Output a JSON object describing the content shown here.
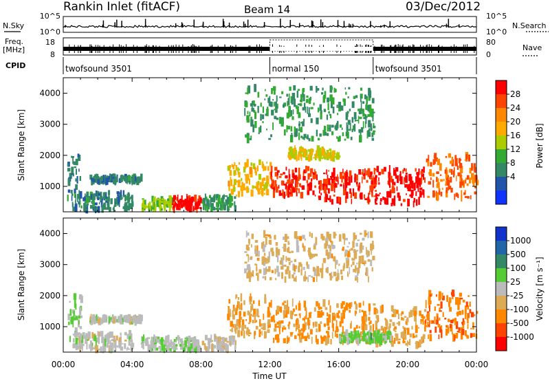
{
  "header": {
    "title": "Rankin Inlet (fitACF)",
    "beam": "Beam 14",
    "date": "03/Dec/2012"
  },
  "strips": {
    "nsky_label": "N.Sky",
    "nsearch_label": "N.Search",
    "noise_ticks": [
      "10^5",
      "10^0"
    ],
    "freq_label": "Freq.",
    "freq_unit": "[MHz]",
    "freq_ticks": [
      "18",
      "8"
    ],
    "nave_label": "Nave",
    "nave_ticks": [
      "80",
      "0"
    ],
    "cpid_label": "CPID",
    "cpid_segments": [
      {
        "name": "twofsound 3501",
        "start_h": 0,
        "end_h": 12
      },
      {
        "name": "normal 150",
        "start_h": 12,
        "end_h": 18
      },
      {
        "name": "twofsound 3501",
        "start_h": 18,
        "end_h": 24
      }
    ]
  },
  "axes": {
    "xlabel": "Time UT",
    "xticks": [
      "00:00",
      "04:00",
      "08:00",
      "12:00",
      "16:00",
      "20:00",
      "00:00"
    ],
    "xrange_h": [
      0,
      24
    ],
    "ylabel": "Slant Range [km]",
    "yticks": [
      1000,
      2000,
      3000,
      4000
    ],
    "yrange_km": [
      180,
      4500
    ]
  },
  "power_colorbar": {
    "label": "Power [dB]",
    "ticks": [
      "28",
      "24",
      "20",
      "16",
      "12",
      "8",
      "4"
    ],
    "colors": [
      "#ff0000",
      "#ff4400",
      "#ff8800",
      "#ffaa00",
      "#aacc00",
      "#33aa33",
      "#338866",
      "#2255aa",
      "#1133ff"
    ]
  },
  "velocity_colorbar": {
    "label": "Velocity [m s⁻¹]",
    "ticks": [
      "1000",
      "500",
      "100",
      "25",
      "-25",
      "-100",
      "-500",
      "-1000"
    ],
    "colors": [
      "#1133cc",
      "#2266aa",
      "#338866",
      "#55cc33",
      "#bbbbbb",
      "#ddaa55",
      "#ff8800",
      "#ff4400",
      "#ff0000"
    ]
  },
  "chart_data": [
    {
      "type": "heatmap",
      "panel": "power",
      "x_unit": "hours UT",
      "y_unit": "km",
      "value_unit": "dB",
      "xlim": [
        0,
        24
      ],
      "ylim": [
        180,
        4500
      ],
      "value_range": [
        0,
        30
      ],
      "regions": [
        {
          "t": [
            0.2,
            1.0
          ],
          "r": [
            600,
            2000
          ],
          "v": 8
        },
        {
          "t": [
            0.5,
            4.0
          ],
          "r": [
            250,
            800
          ],
          "v": 8
        },
        {
          "t": [
            1.5,
            4.5
          ],
          "r": [
            1150,
            1300
          ],
          "v": 8
        },
        {
          "t": [
            4.5,
            6.5
          ],
          "r": [
            250,
            600
          ],
          "v": 14
        },
        {
          "t": [
            6.3,
            8.0
          ],
          "r": [
            250,
            650
          ],
          "v": 28
        },
        {
          "t": [
            8.0,
            10.0
          ],
          "r": [
            250,
            700
          ],
          "v": 10
        },
        {
          "t": [
            9.5,
            12.0
          ],
          "r": [
            700,
            1800
          ],
          "v": 18
        },
        {
          "t": [
            12.0,
            14.5
          ],
          "r": [
            700,
            1600
          ],
          "v": 27
        },
        {
          "t": [
            14.5,
            18.0
          ],
          "r": [
            500,
            1500
          ],
          "v": 27
        },
        {
          "t": [
            18.0,
            21.0
          ],
          "r": [
            400,
            1600
          ],
          "v": 28
        },
        {
          "t": [
            21.0,
            24.0
          ],
          "r": [
            600,
            2000
          ],
          "v": 24
        },
        {
          "t": [
            13.0,
            16.0
          ],
          "r": [
            1900,
            2200
          ],
          "v": 16
        },
        {
          "t": [
            10.5,
            18.0
          ],
          "r": [
            2500,
            4200
          ],
          "v": 10
        }
      ]
    },
    {
      "type": "heatmap",
      "panel": "velocity",
      "x_unit": "hours UT",
      "y_unit": "km",
      "value_unit": "m s^-1",
      "xlim": [
        0,
        24
      ],
      "ylim": [
        180,
        4500
      ],
      "value_range": [
        -1000,
        1000
      ],
      "regions": [
        {
          "t": [
            0.2,
            1.0
          ],
          "r": [
            600,
            2000
          ],
          "v": 100
        },
        {
          "t": [
            0.5,
            4.0
          ],
          "r": [
            250,
            800
          ],
          "v": 10
        },
        {
          "t": [
            1.5,
            4.5
          ],
          "r": [
            1150,
            1300
          ],
          "v": 10
        },
        {
          "t": [
            4.5,
            8.0
          ],
          "r": [
            250,
            650
          ],
          "v": 60
        },
        {
          "t": [
            8.0,
            10.0
          ],
          "r": [
            250,
            700
          ],
          "v": -40
        },
        {
          "t": [
            9.5,
            12.0
          ],
          "r": [
            700,
            2000
          ],
          "v": -300
        },
        {
          "t": [
            12.0,
            18.0
          ],
          "r": [
            500,
            1800
          ],
          "v": -400
        },
        {
          "t": [
            18.0,
            21.0
          ],
          "r": [
            400,
            1600
          ],
          "v": -300
        },
        {
          "t": [
            21.0,
            24.0
          ],
          "r": [
            600,
            2100
          ],
          "v": -500
        },
        {
          "t": [
            16.0,
            19.0
          ],
          "r": [
            500,
            800
          ],
          "v": 200
        },
        {
          "t": [
            10.5,
            18.0
          ],
          "r": [
            2500,
            4000
          ],
          "v": -200
        }
      ]
    }
  ]
}
